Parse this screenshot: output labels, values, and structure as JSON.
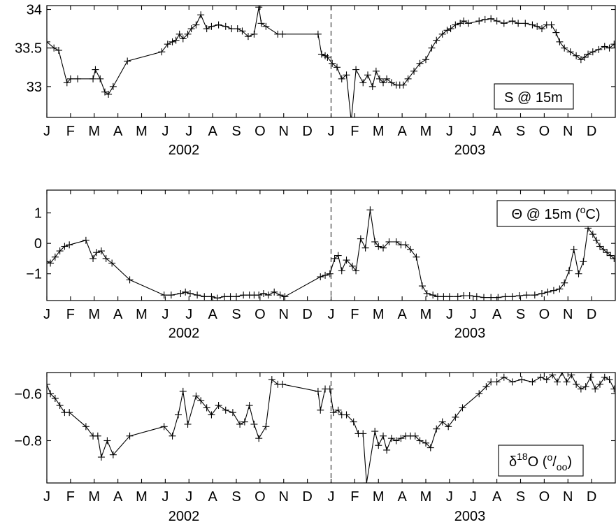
{
  "chart_data": [
    {
      "type": "line",
      "series": [
        {
          "x": [
            0.0,
            0.3,
            0.5,
            0.85,
            1.0,
            1.3,
            1.95,
            2.05,
            2.25,
            2.45,
            2.6,
            2.8,
            3.4,
            4.85,
            5.1,
            5.3,
            5.45,
            5.6,
            5.75,
            5.95,
            6.1,
            6.3,
            6.5,
            6.75,
            6.95,
            7.25,
            7.55,
            7.8,
            8.05,
            8.25,
            8.5,
            8.75,
            8.95,
            9.05,
            9.25,
            9.75,
            9.95,
            11.45,
            11.6,
            11.75,
            11.85,
            12.05,
            12.25,
            12.45,
            12.65,
            12.85,
            13.05,
            13.35,
            13.55,
            13.75,
            13.9,
            14.05,
            14.2,
            14.35,
            14.55,
            14.75,
            14.9,
            15.05,
            15.25,
            15.5,
            15.75,
            16.0,
            16.25,
            16.45,
            16.7,
            16.9,
            17.05,
            17.25,
            17.45,
            17.6,
            17.8,
            18.25,
            18.5,
            18.75,
            19.0,
            19.3,
            19.65,
            19.9,
            20.2,
            20.5,
            20.7,
            20.9,
            21.1,
            21.3,
            21.5,
            21.65,
            21.85,
            22.1,
            22.35,
            22.55,
            22.7,
            22.85,
            23.05,
            23.3,
            23.55,
            23.75,
            23.95
          ],
          "y": [
            33.58,
            33.5,
            33.47,
            33.05,
            33.1,
            33.1,
            33.1,
            33.22,
            33.1,
            32.93,
            32.9,
            33.0,
            33.33,
            33.45,
            33.55,
            33.58,
            33.6,
            33.68,
            33.62,
            33.68,
            33.75,
            33.8,
            33.93,
            33.75,
            33.78,
            33.8,
            33.78,
            33.75,
            33.75,
            33.72,
            33.65,
            33.68,
            34.03,
            33.82,
            33.78,
            33.68,
            33.68,
            33.68,
            33.42,
            33.4,
            33.38,
            33.3,
            33.25,
            33.1,
            33.15,
            32.55,
            33.22,
            33.05,
            33.15,
            33.0,
            33.2,
            33.1,
            33.05,
            33.1,
            33.05,
            33.02,
            33.02,
            33.02,
            33.1,
            33.2,
            33.3,
            33.35,
            33.5,
            33.6,
            33.68,
            33.73,
            33.75,
            33.8,
            33.82,
            33.85,
            33.82,
            33.85,
            33.87,
            33.88,
            33.85,
            33.82,
            33.85,
            33.82,
            33.82,
            33.8,
            33.78,
            33.75,
            33.8,
            33.8,
            33.7,
            33.58,
            33.5,
            33.45,
            33.4,
            33.35,
            33.38,
            33.42,
            33.45,
            33.48,
            33.52,
            33.5,
            33.55
          ]
        }
      ],
      "ylim": [
        32.6,
        34.05
      ],
      "yticks": [
        33,
        33.5,
        34
      ],
      "ytick_labels": [
        "33",
        "33.5",
        "34"
      ],
      "xlim": [
        0,
        24
      ],
      "xtick_labels": [
        "J",
        "F",
        "M",
        "A",
        "M",
        "J",
        "J",
        "A",
        "S",
        "O",
        "N",
        "D",
        "J",
        "F",
        "M",
        "A",
        "M",
        "J",
        "J",
        "A",
        "S",
        "O",
        "N",
        "D"
      ],
      "year_labels": [
        "2002",
        "2003"
      ],
      "legend": {
        "text": "S @ 15m",
        "position": "bottom-right"
      },
      "divider_x": 12
    },
    {
      "type": "line",
      "series": [
        {
          "x": [
            0.0,
            0.15,
            0.35,
            0.55,
            0.75,
            0.95,
            1.65,
            1.95,
            2.1,
            2.3,
            2.5,
            2.75,
            3.5,
            4.95,
            5.25,
            5.65,
            5.85,
            6.05,
            6.35,
            6.65,
            6.95,
            7.2,
            7.5,
            7.75,
            8.0,
            8.3,
            8.55,
            8.75,
            8.95,
            9.15,
            9.35,
            9.6,
            9.85,
            10.05,
            11.55,
            11.75,
            11.95,
            12.15,
            12.3,
            12.45,
            12.65,
            12.9,
            13.05,
            13.25,
            13.45,
            13.65,
            13.85,
            14.0,
            14.2,
            14.45,
            14.75,
            14.95,
            15.15,
            15.35,
            15.6,
            15.85,
            16.05,
            16.3,
            16.5,
            16.75,
            17.0,
            17.35,
            17.6,
            17.85,
            18.15,
            18.45,
            18.75,
            19.05,
            19.35,
            19.65,
            19.95,
            20.25,
            20.6,
            20.9,
            21.15,
            21.4,
            21.65,
            21.85,
            22.05,
            22.25,
            22.45,
            22.65,
            22.85,
            23.05,
            23.2,
            23.35,
            23.5,
            23.65,
            23.8,
            23.95
          ],
          "y": [
            -0.6,
            -0.65,
            -0.45,
            -0.25,
            -0.1,
            -0.05,
            0.1,
            -0.5,
            -0.3,
            -0.25,
            -0.5,
            -0.65,
            -1.2,
            -1.7,
            -1.7,
            -1.65,
            -1.6,
            -1.65,
            -1.7,
            -1.75,
            -1.75,
            -1.8,
            -1.75,
            -1.75,
            -1.75,
            -1.7,
            -1.7,
            -1.7,
            -1.7,
            -1.65,
            -1.7,
            -1.6,
            -1.7,
            -1.75,
            -1.1,
            -1.05,
            -1.0,
            -0.5,
            -0.4,
            -0.9,
            -0.55,
            -0.75,
            -0.9,
            0.15,
            -0.15,
            1.1,
            0.05,
            -0.1,
            -0.15,
            0.05,
            0.05,
            -0.05,
            -0.05,
            -0.2,
            -0.45,
            -1.4,
            -1.65,
            -1.7,
            -1.75,
            -1.75,
            -1.75,
            -1.75,
            -1.72,
            -1.72,
            -1.75,
            -1.78,
            -1.78,
            -1.78,
            -1.75,
            -1.75,
            -1.72,
            -1.7,
            -1.7,
            -1.65,
            -1.6,
            -1.55,
            -1.5,
            -1.3,
            -0.9,
            -0.2,
            -1.0,
            -0.6,
            0.5,
            0.3,
            0.1,
            -0.1,
            -0.2,
            -0.3,
            -0.4,
            -0.5
          ],
          "y_clip_note": ""
        }
      ],
      "ylim": [
        -1.88,
        1.75
      ],
      "yticks": [
        -1,
        0,
        1
      ],
      "ytick_labels": [
        "−1",
        "0",
        "1"
      ],
      "xlim": [
        0,
        24
      ],
      "xtick_labels": [
        "J",
        "F",
        "M",
        "A",
        "M",
        "J",
        "J",
        "A",
        "S",
        "O",
        "N",
        "D",
        "J",
        "F",
        "M",
        "A",
        "M",
        "J",
        "J",
        "A",
        "S",
        "O",
        "N",
        "D"
      ],
      "year_labels": [
        "2002",
        "2003"
      ],
      "legend": {
        "text": "Θ @ 15m (",
        "sup": "o",
        "tail": "C)",
        "position": "top-right"
      },
      "divider_x": 12
    },
    {
      "type": "line",
      "series": [
        {
          "x": [
            0.0,
            0.15,
            0.35,
            0.55,
            0.75,
            0.95,
            1.65,
            1.95,
            2.15,
            2.3,
            2.55,
            2.8,
            3.5,
            4.95,
            5.3,
            5.55,
            5.75,
            5.95,
            6.3,
            6.5,
            6.75,
            6.95,
            7.25,
            7.55,
            7.85,
            8.15,
            8.35,
            8.55,
            8.75,
            8.95,
            9.25,
            9.5,
            9.75,
            9.95,
            11.45,
            11.55,
            11.75,
            11.95,
            12.1,
            12.3,
            12.45,
            12.65,
            12.95,
            13.15,
            13.35,
            13.5,
            13.85,
            14.0,
            14.2,
            14.35,
            14.55,
            14.75,
            14.95,
            15.15,
            15.35,
            15.55,
            15.75,
            16.0,
            16.2,
            16.45,
            16.7,
            16.95,
            17.25,
            17.55,
            18.25,
            18.55,
            18.75,
            19.0,
            19.3,
            19.65,
            20.05,
            20.5,
            20.85,
            21.1,
            21.35,
            21.55,
            21.75,
            21.95,
            22.15,
            22.35,
            22.55,
            22.75,
            22.95,
            23.15,
            23.35,
            23.55,
            23.75,
            23.95
          ],
          "y": [
            -0.56,
            -0.6,
            -0.62,
            -0.65,
            -0.68,
            -0.68,
            -0.74,
            -0.78,
            -0.78,
            -0.87,
            -0.8,
            -0.86,
            -0.78,
            -0.74,
            -0.78,
            -0.69,
            -0.59,
            -0.73,
            -0.61,
            -0.63,
            -0.66,
            -0.69,
            -0.65,
            -0.67,
            -0.68,
            -0.73,
            -0.72,
            -0.65,
            -0.73,
            -0.79,
            -0.74,
            -0.54,
            -0.56,
            -0.56,
            -0.59,
            -0.67,
            -0.58,
            -0.58,
            -0.68,
            -0.67,
            -0.69,
            -0.69,
            -0.72,
            -0.77,
            -0.77,
            -0.98,
            -0.76,
            -0.82,
            -0.78,
            -0.84,
            -0.79,
            -0.8,
            -0.79,
            -0.78,
            -0.78,
            -0.78,
            -0.8,
            -0.81,
            -0.83,
            -0.75,
            -0.72,
            -0.74,
            -0.7,
            -0.66,
            -0.6,
            -0.57,
            -0.55,
            -0.55,
            -0.53,
            -0.55,
            -0.54,
            -0.55,
            -0.53,
            -0.54,
            -0.52,
            -0.55,
            -0.51,
            -0.55,
            -0.52,
            -0.56,
            -0.58,
            -0.57,
            -0.53,
            -0.58,
            -0.56,
            -0.53,
            -0.54,
            -0.58
          ],
          "y_clip_note": ""
        }
      ],
      "ylim": [
        -0.98,
        -0.51
      ],
      "yticks": [
        -0.8,
        -0.6
      ],
      "ytick_labels": [
        "−0.8",
        "−0.6"
      ],
      "xlim": [
        0,
        24
      ],
      "xtick_labels": [
        "J",
        "F",
        "M",
        "A",
        "M",
        "J",
        "J",
        "A",
        "S",
        "O",
        "N",
        "D",
        "J",
        "F",
        "M",
        "A",
        "M",
        "J",
        "J",
        "A",
        "S",
        "O",
        "N",
        "D"
      ],
      "year_labels": [
        "2002",
        "2003"
      ],
      "legend": {
        "text": "δ",
        "sup": "18",
        "mid": "O (",
        "frac_num": "o",
        "frac_sep": "/",
        "frac_den": "oo",
        "tail": ")",
        "position": "bottom-right"
      },
      "divider_x": 12
    }
  ]
}
